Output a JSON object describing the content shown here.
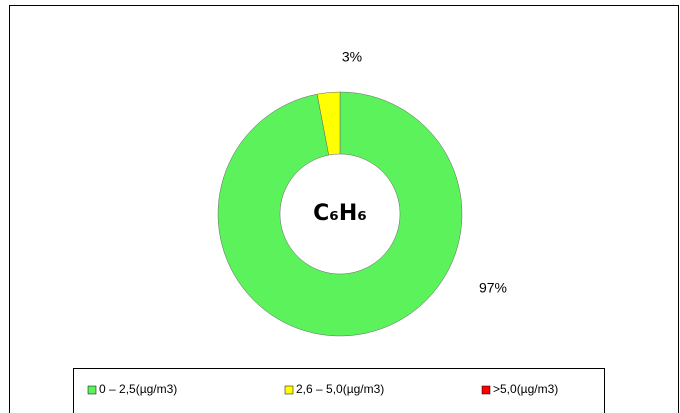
{
  "chart_data": {
    "type": "donut",
    "center_label": "C₆H₆",
    "categories": [
      "0 – 2,5(µg/m3)",
      "2,6 – 5,0(µg/m3)",
      ">5,0(µg/m3)"
    ],
    "values": [
      97,
      3,
      0
    ],
    "value_labels": [
      "97%",
      "3%",
      null
    ],
    "colors": [
      "#5cf25c",
      "#ffff00",
      "#ff0000"
    ],
    "legend": "bottom"
  }
}
